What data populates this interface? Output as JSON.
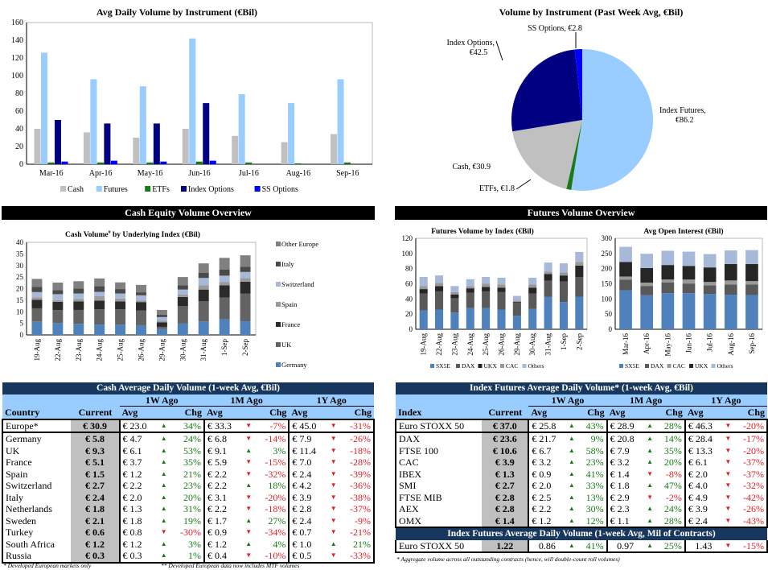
{
  "colors": {
    "cash": "#c0c0c0",
    "futures": "#99ccff",
    "etfs": "#1a7a1a",
    "index_options": "#000080",
    "ss_options": "#0000ff",
    "germany": "#4f81bd",
    "uk": "#636363",
    "france": "#2b2b2b",
    "spain": "#9a9a9a",
    "switzerland": "#a6b9d9",
    "italy": "#4a4a4a",
    "other_europe": "#808080",
    "sx5e": "#4f81bd",
    "dax": "#595959",
    "ukx": "#262626",
    "cac": "#999999",
    "others": "#a6b9d9",
    "table_header": "#17375e",
    "table_subheader": "#99ccff",
    "up": "#1a7a1a",
    "down": "#e0202a"
  },
  "chart_data": [
    {
      "id": "adv_by_instrument",
      "type": "bar",
      "title": "Avg Daily Volume by Instrument (€Bil)",
      "categories": [
        "Mar-16",
        "Apr-16",
        "May-16",
        "Jun-16",
        "Jul-16",
        "Aug-16",
        "Sep-16"
      ],
      "series": [
        {
          "name": "Cash",
          "values": [
            40,
            36,
            30,
            40,
            32,
            25,
            34
          ]
        },
        {
          "name": "Futures",
          "values": [
            126,
            96,
            88,
            142,
            79,
            69,
            96
          ]
        },
        {
          "name": "ETFs",
          "values": [
            2,
            2,
            2,
            3,
            2,
            1,
            2
          ]
        },
        {
          "name": "Index Options",
          "values": [
            50,
            46,
            46,
            69,
            0,
            0,
            0
          ]
        },
        {
          "name": "SS Options",
          "values": [
            3,
            4,
            3,
            4,
            0,
            0,
            0
          ]
        }
      ],
      "yticks": [
        0,
        20,
        40,
        60,
        80,
        100,
        120,
        140,
        160
      ],
      "ylim": [
        0,
        160
      ],
      "legend": "bottom"
    },
    {
      "id": "volume_pie",
      "type": "pie",
      "title": "Volume by Instrument (Past Week Avg, €Bil)",
      "slices": [
        {
          "name": "Index Futures",
          "value": 86.2,
          "label": "Index Futures,",
          "value_label": "€86.2"
        },
        {
          "name": "ETFs",
          "value": 1.8,
          "label": "ETFs, €1.8"
        },
        {
          "name": "Cash",
          "value": 30.9,
          "label": "Cash, €30.9"
        },
        {
          "name": "Index Options",
          "value": 42.5,
          "label": "Index Options,",
          "value_label": "€42.5"
        },
        {
          "name": "SS Options",
          "value": 2.8,
          "label": "SS Options, €2.8"
        }
      ]
    },
    {
      "id": "cash_by_index",
      "type": "bar",
      "stacked": true,
      "title": "Cash Volume",
      "title_sup": "#",
      "title_rest": " by Underlying Index (€Bil)",
      "categories": [
        "19-Aug",
        "22-Aug",
        "23-Aug",
        "24-Aug",
        "25-Aug",
        "26-Aug",
        "29-Aug",
        "30-Aug",
        "31-Aug",
        "1-Sep",
        "2-Sep"
      ],
      "series": [
        {
          "name": "Germany",
          "values": [
            5.8,
            5.1,
            4.8,
            4.5,
            4.5,
            4.2,
            2.5,
            4.9,
            5.8,
            6.8,
            5.9
          ]
        },
        {
          "name": "UK",
          "values": [
            5.7,
            5.6,
            6.0,
            6.6,
            6.6,
            6.3,
            1.0,
            7.5,
            8.7,
            9.3,
            11.9
          ]
        },
        {
          "name": "France",
          "values": [
            3.7,
            3.6,
            3.7,
            3.7,
            3.4,
            3.7,
            1.9,
            4.0,
            5.1,
            5.3,
            5.2
          ]
        },
        {
          "name": "Spain",
          "values": [
            1.0,
            0.7,
            1.1,
            1.9,
            1.2,
            0.7,
            0.7,
            1.0,
            1.9,
            1.5,
            1.6
          ]
        },
        {
          "name": "Switzerland",
          "values": [
            2.3,
            2.6,
            2.3,
            1.9,
            2.2,
            2.2,
            1.6,
            2.2,
            3.1,
            2.7,
            2.6
          ]
        },
        {
          "name": "Italy",
          "values": [
            2.3,
            1.8,
            2.2,
            2.5,
            1.9,
            1.3,
            1.1,
            1.9,
            2.3,
            2.7,
            2.2
          ]
        },
        {
          "name": "Other Europe",
          "values": [
            3.4,
            3.2,
            3.1,
            3.3,
            2.9,
            3.2,
            2.0,
            3.5,
            4.0,
            5.0,
            5.0
          ]
        }
      ],
      "yticks": [
        0,
        5,
        10,
        15,
        20,
        25,
        30,
        35,
        40
      ],
      "ylim": [
        0,
        40
      ],
      "legend": "right"
    },
    {
      "id": "futures_by_index",
      "type": "bar",
      "stacked": true,
      "title": "Futures Volume by Index (€Bil)",
      "categories": [
        "19-Aug",
        "22-Aug",
        "23-Aug",
        "24-Aug",
        "25-Aug",
        "26-Aug",
        "29-Aug",
        "30-Aug",
        "31-Aug",
        "1-Sep",
        "2-Sep"
      ],
      "series": [
        {
          "name": "SX5E",
          "values": [
            25,
            26,
            22,
            28,
            28,
            26,
            18,
            27,
            43,
            36,
            43
          ]
        },
        {
          "name": "DAX",
          "values": [
            22,
            24,
            19,
            20,
            22,
            23,
            17,
            20,
            21,
            27,
            26
          ]
        },
        {
          "name": "UKX",
          "values": [
            6,
            7,
            5,
            6,
            6,
            6,
            1,
            8,
            9,
            8,
            15
          ]
        },
        {
          "name": "CAC",
          "values": [
            4,
            4,
            3,
            3,
            4,
            4,
            2,
            4,
            3,
            4,
            5
          ]
        },
        {
          "name": "Others",
          "values": [
            12,
            10,
            8,
            9,
            9,
            9,
            6,
            9,
            12,
            12,
            13
          ]
        }
      ],
      "yticks": [
        0,
        20,
        40,
        60,
        80,
        100,
        120
      ],
      "ylim": [
        0,
        120
      ],
      "legend": "bottom"
    },
    {
      "id": "open_interest",
      "type": "bar",
      "stacked": true,
      "title": "Avg Open Interest (€Bil)",
      "categories": [
        "Mar-16",
        "Apr-16",
        "May-16",
        "Jun-16",
        "Jul-16",
        "Aug-16",
        "Sep-16"
      ],
      "series": [
        {
          "name": "SX5E",
          "values": [
            128,
            112,
            119,
            119,
            116,
            114,
            113
          ]
        },
        {
          "name": "DAX",
          "values": [
            36,
            31,
            35,
            32,
            29,
            34,
            35
          ]
        },
        {
          "name": "CAC",
          "values": [
            10,
            11,
            10,
            13,
            11,
            13,
            11
          ]
        },
        {
          "name": "UKX",
          "values": [
            48,
            48,
            48,
            45,
            48,
            54,
            56
          ]
        },
        {
          "name": "Others",
          "values": [
            50,
            47,
            47,
            47,
            44,
            45,
            46
          ]
        }
      ],
      "yticks": [
        0,
        50,
        100,
        150,
        200,
        250,
        300
      ],
      "ylim": [
        0,
        300
      ],
      "legend": "bottom"
    }
  ],
  "sections": {
    "cash": "Cash Equity Volume Overview",
    "futures": "Futures Volume Overview"
  },
  "cash_table": {
    "title": "Cash Average Daily Volume (1-week Avg, €Bil)",
    "groups": [
      "1W Ago",
      "1M Ago",
      "1Y Ago"
    ],
    "col_label": "Country",
    "current_label": "Current",
    "avg_label": "Avg",
    "chg_label": "Chg",
    "rows": [
      {
        "name": "Europe*",
        "cur": "€ 30.9",
        "w": "€ 23.0",
        "wd": "up",
        "wc": "34%",
        "m": "€ 33.3",
        "md": "dn",
        "mc": "-7%",
        "y": "€ 45.0",
        "yd": "dn",
        "yc": "-31%"
      },
      {
        "name": "Germany",
        "cur": "€ 5.8",
        "w": "€ 4.7",
        "wd": "up",
        "wc": "24%",
        "m": "€ 6.8",
        "md": "dn",
        "mc": "-14%",
        "y": "€ 7.9",
        "yd": "dn",
        "yc": "-26%"
      },
      {
        "name": "UK",
        "cur": "€ 9.3",
        "w": "€ 6.1",
        "wd": "up",
        "wc": "53%",
        "m": "€ 9.1",
        "md": "up",
        "mc": "3%",
        "y": "€ 11.4",
        "yd": "dn",
        "yc": "-18%"
      },
      {
        "name": "France",
        "cur": "€ 5.1",
        "w": "€ 3.7",
        "wd": "up",
        "wc": "35%",
        "m": "€ 5.9",
        "md": "dn",
        "mc": "-15%",
        "y": "€ 7.0",
        "yd": "dn",
        "yc": "-28%"
      },
      {
        "name": "Spain",
        "cur": "€ 1.5",
        "w": "€ 1.2",
        "wd": "up",
        "wc": "21%",
        "m": "€ 2.2",
        "md": "dn",
        "mc": "-32%",
        "y": "€ 2.4",
        "yd": "dn",
        "yc": "-39%"
      },
      {
        "name": "Switzerland",
        "cur": "€ 2.7",
        "w": "€ 2.2",
        "wd": "up",
        "wc": "23%",
        "m": "€ 2.2",
        "md": "up",
        "mc": "18%",
        "y": "€ 4.2",
        "yd": "dn",
        "yc": "-36%"
      },
      {
        "name": "Italy",
        "cur": "€ 2.4",
        "w": "€ 2.0",
        "wd": "up",
        "wc": "20%",
        "m": "€ 3.1",
        "md": "dn",
        "mc": "-20%",
        "y": "€ 3.9",
        "yd": "dn",
        "yc": "-38%"
      },
      {
        "name": "Netherlands",
        "cur": "€ 1.8",
        "w": "€ 1.3",
        "wd": "up",
        "wc": "31%",
        "m": "€ 2.2",
        "md": "dn",
        "mc": "-18%",
        "y": "€ 2.8",
        "yd": "dn",
        "yc": "-37%"
      },
      {
        "name": "Sweden",
        "cur": "€ 2.1",
        "w": "€ 1.8",
        "wd": "up",
        "wc": "19%",
        "m": "€ 1.7",
        "md": "up",
        "mc": "27%",
        "y": "€ 2.4",
        "yd": "dn",
        "yc": "-9%"
      },
      {
        "name": "Turkey",
        "cur": "€ 0.6",
        "w": "€ 0.8",
        "wd": "dn",
        "wc": "-30%",
        "m": "€ 0.9",
        "md": "dn",
        "mc": "-34%",
        "y": "€ 0.7",
        "yd": "dn",
        "yc": "-21%"
      },
      {
        "name": "South Africa",
        "cur": "€ 1.2",
        "w": "€ 1.2",
        "wd": "up",
        "wc": "3%",
        "m": "€ 1.2",
        "md": "up",
        "mc": "4%",
        "y": "€ 1.0",
        "yd": "up",
        "yc": "21%"
      },
      {
        "name": "Russia",
        "cur": "€ 0.3",
        "w": "€ 0.3",
        "wd": "up",
        "wc": "1%",
        "m": "€ 0.4",
        "md": "dn",
        "mc": "-10%",
        "y": "€ 0.5",
        "yd": "dn",
        "yc": "-33%"
      }
    ],
    "footnote1": "* Developed European markets only",
    "footnote2": "** Developed European data now includes MTF volumes"
  },
  "futures_table": {
    "title": "Index Futures Average Daily Volume* (1-week Avg, €Bil)",
    "groups": [
      "1W Ago",
      "1M Ago",
      "1Y Ago"
    ],
    "col_label": "Index",
    "current_label": "Current",
    "avg_label": "Avg",
    "chg_label": "Chg",
    "rows": [
      {
        "name": "Euro STOXX 50",
        "cur": "€ 37.0",
        "w": "€ 25.8",
        "wd": "up",
        "wc": "43%",
        "m": "€ 28.9",
        "md": "up",
        "mc": "28%",
        "y": "€ 46.3",
        "yd": "dn",
        "yc": "-20%"
      },
      {
        "name": "DAX",
        "cur": "€ 23.6",
        "w": "€ 21.7",
        "wd": "up",
        "wc": "9%",
        "m": "€ 20.8",
        "md": "up",
        "mc": "14%",
        "y": "€ 28.4",
        "yd": "dn",
        "yc": "-17%"
      },
      {
        "name": "FTSE 100",
        "cur": "€ 10.6",
        "w": "€ 6.7",
        "wd": "up",
        "wc": "58%",
        "m": "€ 7.9",
        "md": "up",
        "mc": "35%",
        "y": "€ 13.3",
        "yd": "dn",
        "yc": "-20%"
      },
      {
        "name": "CAC",
        "cur": "€ 3.9",
        "w": "€ 3.2",
        "wd": "up",
        "wc": "23%",
        "m": "€ 3.2",
        "md": "up",
        "mc": "20%",
        "y": "€ 6.1",
        "yd": "dn",
        "yc": "-37%"
      },
      {
        "name": "IBEX",
        "cur": "€ 1.3",
        "w": "€ 0.9",
        "wd": "up",
        "wc": "41%",
        "m": "€ 1.4",
        "md": "dn",
        "mc": "-8%",
        "y": "€ 2.0",
        "yd": "dn",
        "yc": "-37%"
      },
      {
        "name": "SMI",
        "cur": "€ 2.7",
        "w": "€ 2.0",
        "wd": "up",
        "wc": "33%",
        "m": "€ 1.8",
        "md": "up",
        "mc": "47%",
        "y": "€ 4.0",
        "yd": "dn",
        "yc": "-32%"
      },
      {
        "name": "FTSE MIB",
        "cur": "€ 2.8",
        "w": "€ 2.5",
        "wd": "up",
        "wc": "13%",
        "m": "€ 2.9",
        "md": "dn",
        "mc": "-2%",
        "y": "€ 4.9",
        "yd": "dn",
        "yc": "-42%"
      },
      {
        "name": "AEX",
        "cur": "€ 2.8",
        "w": "€ 2.2",
        "wd": "up",
        "wc": "30%",
        "m": "€ 2.3",
        "md": "up",
        "mc": "24%",
        "y": "€ 3.9",
        "yd": "dn",
        "yc": "-26%"
      },
      {
        "name": "OMX",
        "cur": "€ 1.4",
        "w": "€ 1.2",
        "wd": "up",
        "wc": "12%",
        "m": "€ 1.1",
        "md": "up",
        "mc": "28%",
        "y": "€ 2.4",
        "yd": "dn",
        "yc": "-43%"
      }
    ],
    "contracts_title": "Index Futures Average Daily Volume (1-week Avg, Mil of Contracts)",
    "contracts_row": {
      "name": "Euro STOXX 50",
      "cur": "1.22",
      "w": "0.86",
      "wd": "up",
      "wc": "41%",
      "m": "0.97",
      "md": "up",
      "mc": "25%",
      "y": "1.43",
      "yd": "dn",
      "yc": "-15%"
    },
    "footnote": "* Aggregate volume across all outstanding contracts (hence, will double-count roll volumes)"
  },
  "arrows": {
    "up": "▲",
    "dn": "▼"
  }
}
